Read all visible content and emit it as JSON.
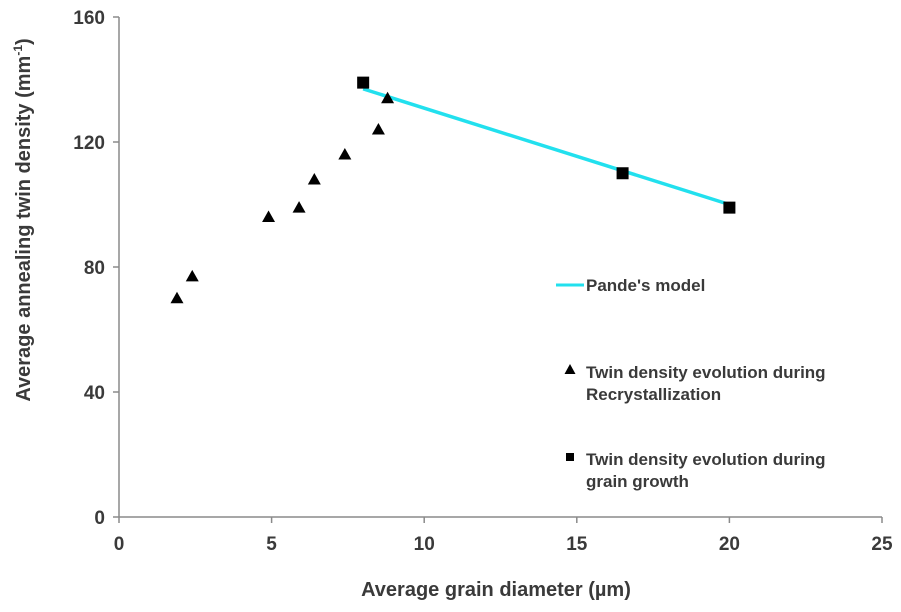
{
  "chart_data": {
    "type": "scatter",
    "title": "",
    "xlabel": "Average grain diameter (µm)",
    "ylabel": "Average annealing twin density (mm",
    "ylabel_sup": "-1",
    "ylabel_close": ")",
    "xlim": [
      0,
      25
    ],
    "ylim": [
      0,
      160
    ],
    "xticks": [
      0,
      5,
      10,
      15,
      20,
      25
    ],
    "yticks": [
      0,
      40,
      80,
      120,
      160
    ],
    "grid": false,
    "legend_position": "right",
    "series": [
      {
        "name": "Pande's model",
        "kind": "line",
        "color": "#22e0ee",
        "x": [
          8,
          20
        ],
        "y": [
          137,
          100
        ]
      },
      {
        "name": "Twin density evolution during Recrystallization",
        "name_lines": [
          "Twin density evolution during",
          "Recrystallization"
        ],
        "kind": "triangle",
        "color": "#000000",
        "x": [
          1.9,
          2.4,
          4.9,
          5.9,
          6.4,
          7.4,
          8.5,
          8.8
        ],
        "y": [
          70,
          77,
          96,
          99,
          108,
          116,
          124,
          134
        ]
      },
      {
        "name": "Twin density evolution during grain growth",
        "name_lines": [
          "Twin density evolution during",
          "grain growth"
        ],
        "kind": "square",
        "color": "#000000",
        "x": [
          8,
          16.5,
          20
        ],
        "y": [
          139,
          110,
          99
        ]
      }
    ]
  }
}
